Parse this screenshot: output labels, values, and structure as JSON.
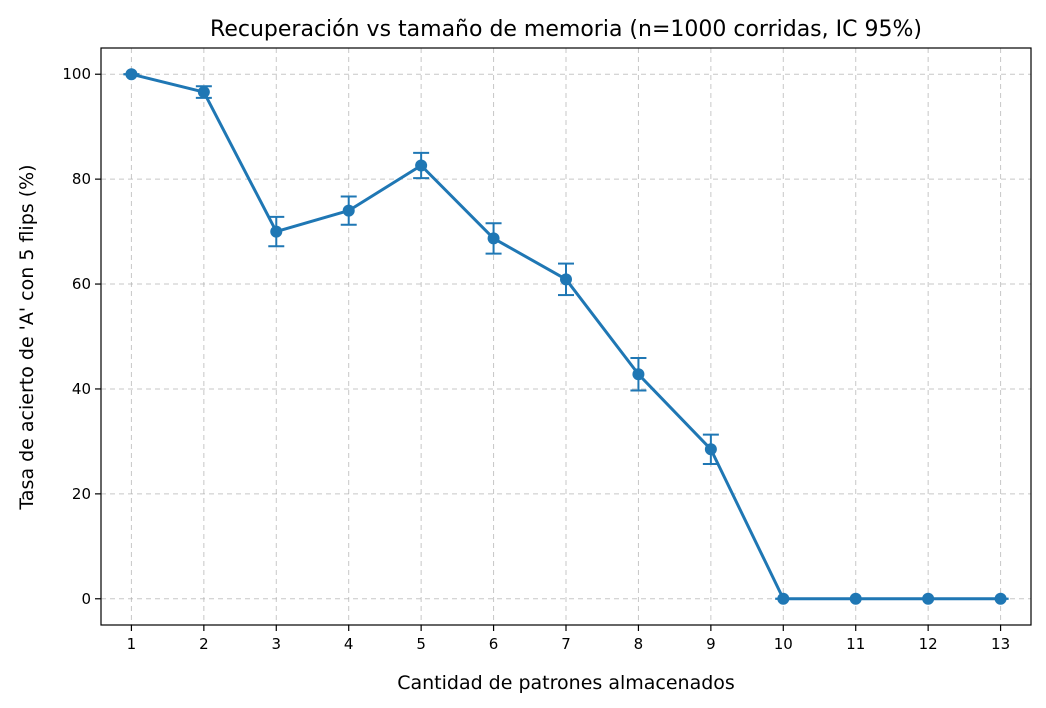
{
  "chart_data": {
    "type": "line",
    "title": "Recuperación vs tamaño de memoria (n=1000 corridas, IC 95%)",
    "xlabel": "Cantidad de patrones almacenados",
    "ylabel": "Tasa de acierto de 'A' con 5 flips (%)",
    "x": [
      1,
      2,
      3,
      4,
      5,
      6,
      7,
      8,
      9,
      10,
      11,
      12,
      13
    ],
    "xticks": [
      "1",
      "2",
      "3",
      "4",
      "5",
      "6",
      "7",
      "8",
      "9",
      "10",
      "11",
      "12",
      "13"
    ],
    "xlim": [
      0.58,
      13.42
    ],
    "ylim": [
      -5,
      105
    ],
    "yticks": [
      "0",
      "20",
      "40",
      "60",
      "80",
      "100"
    ],
    "grid": true,
    "series": [
      {
        "color": "#1f77b4",
        "values": [
          100,
          96.6,
          70.0,
          74.0,
          82.6,
          68.7,
          60.9,
          42.8,
          28.5,
          0,
          0,
          0,
          0
        ],
        "ci_low": [
          100,
          95.5,
          67.2,
          71.3,
          80.2,
          65.8,
          57.9,
          39.7,
          25.7,
          0,
          0,
          0,
          0
        ],
        "ci_high": [
          100,
          97.7,
          72.8,
          76.7,
          85.0,
          71.6,
          63.9,
          45.9,
          31.3,
          0,
          0,
          0,
          0
        ]
      }
    ]
  }
}
